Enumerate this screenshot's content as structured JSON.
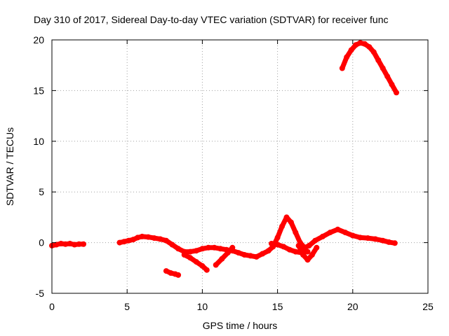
{
  "chart_data": {
    "type": "scatter",
    "title": "Day 310 of 2017, Sidereal Day-to-day VTEC variation (SDTVAR) for receiver func",
    "xlabel": "GPS time / hours",
    "ylabel": "SDTVAR / TECUs",
    "xlim": [
      0,
      25
    ],
    "ylim": [
      -5,
      20
    ],
    "xticks": [
      "0",
      "5",
      "10",
      "15",
      "20",
      "25"
    ],
    "yticks": [
      "-5",
      "0",
      "5",
      "10",
      "15",
      "20"
    ],
    "grid": true,
    "series": [
      {
        "name": "SDTVAR",
        "color": "#ff0000",
        "segments": [
          [
            [
              0.0,
              -0.3
            ],
            [
              0.3,
              -0.2
            ],
            [
              0.6,
              -0.1
            ],
            [
              0.9,
              -0.15
            ],
            [
              1.2,
              -0.1
            ],
            [
              1.5,
              -0.2
            ],
            [
              1.8,
              -0.15
            ],
            [
              2.1,
              -0.15
            ]
          ],
          [
            [
              4.5,
              0.0
            ],
            [
              4.8,
              0.1
            ],
            [
              5.1,
              0.2
            ],
            [
              5.4,
              0.3
            ],
            [
              5.7,
              0.5
            ],
            [
              6.0,
              0.6
            ],
            [
              6.4,
              0.55
            ],
            [
              6.8,
              0.45
            ],
            [
              7.2,
              0.35
            ],
            [
              7.6,
              0.2
            ],
            [
              8.0,
              -0.2
            ],
            [
              8.4,
              -0.6
            ],
            [
              8.8,
              -0.9
            ],
            [
              9.2,
              -0.9
            ],
            [
              9.6,
              -0.8
            ],
            [
              10.0,
              -0.6
            ],
            [
              10.4,
              -0.5
            ],
            [
              10.8,
              -0.5
            ],
            [
              11.2,
              -0.6
            ],
            [
              11.6,
              -0.7
            ],
            [
              12.0,
              -0.8
            ],
            [
              12.4,
              -1.0
            ],
            [
              12.8,
              -1.2
            ],
            [
              13.2,
              -1.3
            ],
            [
              13.6,
              -1.4
            ],
            [
              14.0,
              -1.1
            ],
            [
              14.4,
              -0.8
            ],
            [
              14.7,
              -0.4
            ],
            [
              15.0,
              0.5
            ],
            [
              15.3,
              1.6
            ],
            [
              15.6,
              2.5
            ],
            [
              15.9,
              2.0
            ],
            [
              16.2,
              1.0
            ],
            [
              16.5,
              0.0
            ],
            [
              16.8,
              -0.5
            ],
            [
              17.1,
              -0.3
            ],
            [
              17.5,
              0.2
            ],
            [
              18.0,
              0.6
            ],
            [
              18.5,
              1.0
            ],
            [
              19.0,
              1.3
            ],
            [
              19.5,
              1.0
            ],
            [
              20.0,
              0.7
            ],
            [
              20.5,
              0.5
            ],
            [
              21.0,
              0.45
            ],
            [
              21.5,
              0.35
            ],
            [
              22.0,
              0.2
            ],
            [
              22.4,
              0.05
            ],
            [
              22.8,
              -0.05
            ]
          ],
          [
            [
              8.8,
              -1.2
            ],
            [
              9.2,
              -1.5
            ],
            [
              9.6,
              -1.9
            ],
            [
              10.0,
              -2.3
            ],
            [
              10.3,
              -2.7
            ]
          ],
          [
            [
              10.9,
              -2.2
            ],
            [
              11.3,
              -1.6
            ],
            [
              11.7,
              -1.0
            ],
            [
              12.0,
              -0.5
            ]
          ],
          [
            [
              14.6,
              -0.1
            ],
            [
              15.0,
              -0.2
            ],
            [
              15.4,
              -0.4
            ],
            [
              15.8,
              -0.7
            ],
            [
              16.2,
              -0.9
            ],
            [
              16.6,
              -1.0
            ],
            [
              17.0,
              -0.9
            ]
          ],
          [
            [
              16.4,
              -0.3
            ],
            [
              16.7,
              -1.2
            ],
            [
              17.0,
              -1.7
            ],
            [
              17.3,
              -1.2
            ],
            [
              17.6,
              -0.5
            ]
          ],
          [
            [
              7.6,
              -2.8
            ],
            [
              7.9,
              -3.0
            ],
            [
              8.2,
              -3.1
            ],
            [
              8.4,
              -3.2
            ]
          ],
          [
            [
              19.3,
              17.2
            ],
            [
              19.6,
              18.3
            ],
            [
              19.9,
              19.0
            ],
            [
              20.2,
              19.5
            ],
            [
              20.5,
              19.7
            ],
            [
              20.8,
              19.6
            ],
            [
              21.1,
              19.3
            ],
            [
              21.4,
              18.8
            ],
            [
              21.7,
              18.0
            ],
            [
              22.0,
              17.2
            ],
            [
              22.3,
              16.4
            ],
            [
              22.6,
              15.6
            ],
            [
              22.9,
              14.8
            ]
          ]
        ]
      }
    ]
  }
}
